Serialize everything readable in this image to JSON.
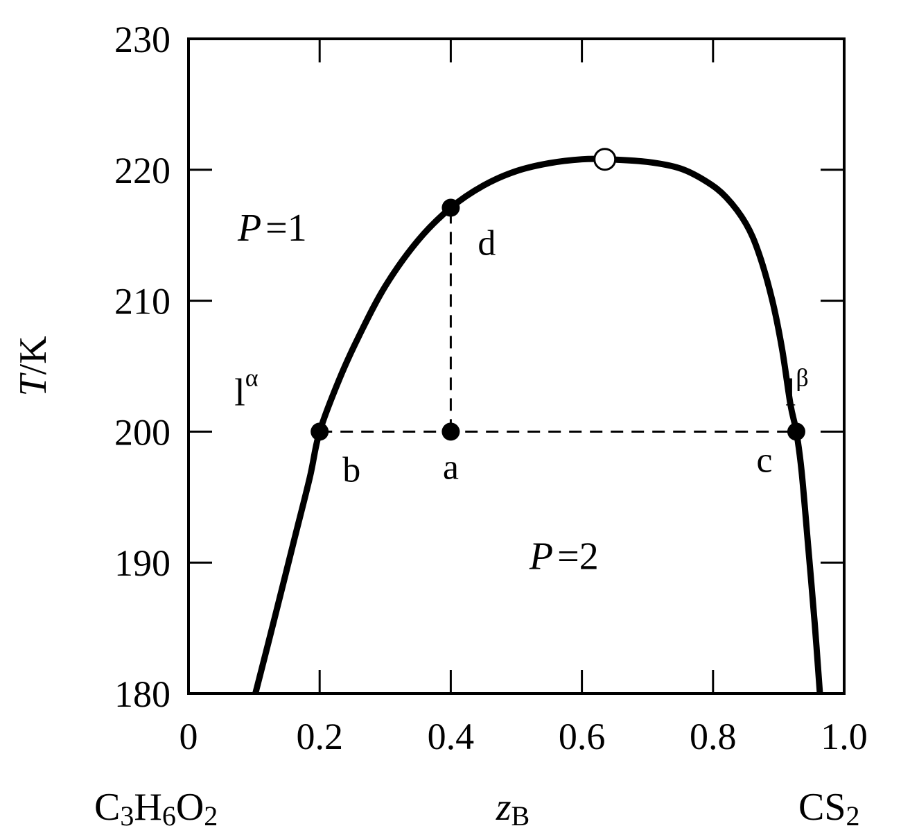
{
  "chart_data": {
    "type": "line",
    "title": "",
    "xlabel": "z",
    "xlabel_sub": "B",
    "ylabel": "T",
    "ylabel_unit": "/K",
    "xlim": [
      0,
      1.0
    ],
    "ylim": [
      180,
      230
    ],
    "x_ticks": [
      0,
      0.2,
      0.4,
      0.6,
      0.8,
      1.0
    ],
    "x_tick_labels": [
      "0",
      "0.2",
      "0.4",
      "0.6",
      "0.8",
      "1.0"
    ],
    "y_ticks": [
      180,
      190,
      200,
      210,
      220,
      230
    ],
    "y_tick_labels": [
      "180",
      "190",
      "200",
      "210",
      "220",
      "230"
    ],
    "grid": false,
    "legend": "none",
    "component_left": {
      "parts": [
        "C",
        "3",
        "H",
        "6",
        "O",
        "2"
      ]
    },
    "component_right": {
      "parts": [
        "CS",
        "2"
      ]
    },
    "series": [
      {
        "values": [
          [
            0.102,
            180
          ],
          [
            0.13,
            185.5
          ],
          [
            0.16,
            191.5
          ],
          [
            0.185,
            196.5
          ],
          [
            0.2,
            200
          ],
          [
            0.23,
            204
          ],
          [
            0.26,
            207.3
          ],
          [
            0.3,
            211.1
          ],
          [
            0.35,
            214.6
          ],
          [
            0.4,
            217.1
          ],
          [
            0.45,
            218.8
          ],
          [
            0.5,
            219.9
          ],
          [
            0.55,
            220.5
          ],
          [
            0.6,
            220.8
          ],
          [
            0.64,
            220.8
          ],
          [
            0.7,
            220.6
          ],
          [
            0.75,
            220.1
          ],
          [
            0.79,
            219.1
          ],
          [
            0.82,
            217.9
          ],
          [
            0.85,
            215.9
          ],
          [
            0.87,
            213.6
          ],
          [
            0.89,
            210.1
          ],
          [
            0.905,
            206.4
          ],
          [
            0.918,
            202.1
          ],
          [
            0.927,
            200
          ],
          [
            0.935,
            197
          ],
          [
            0.945,
            191.3
          ],
          [
            0.955,
            185.4
          ],
          [
            0.963,
            180
          ]
        ]
      }
    ],
    "critical_point": {
      "x": 0.635,
      "y": 220.8
    },
    "tie_line": {
      "x_from": 0.2,
      "x_to": 0.927,
      "y": 200
    },
    "vertical_line": {
      "x": 0.4,
      "y_from": 200,
      "y_to": 217.1
    },
    "points": [
      {
        "label": "a",
        "x": 0.4,
        "y": 200
      },
      {
        "label": "b",
        "x": 0.2,
        "y": 200
      },
      {
        "label": "c",
        "x": 0.927,
        "y": 200
      },
      {
        "label": "d",
        "x": 0.4,
        "y": 217.1
      }
    ],
    "annotations": [
      {
        "text": "P",
        "text2": "=1",
        "x": 0.075,
        "y": 214.6
      },
      {
        "text": "P",
        "text2": "=2",
        "x": 0.52,
        "y": 189.5
      },
      {
        "text": "l",
        "sup": "α",
        "x": 0.07,
        "y": 202.0
      },
      {
        "text": "l",
        "sup": "β",
        "x": 0.91,
        "y": 202.0
      }
    ],
    "colors": {
      "line": "#000000",
      "critical_fill": "#ffffff",
      "point_fill": "#000000"
    }
  }
}
